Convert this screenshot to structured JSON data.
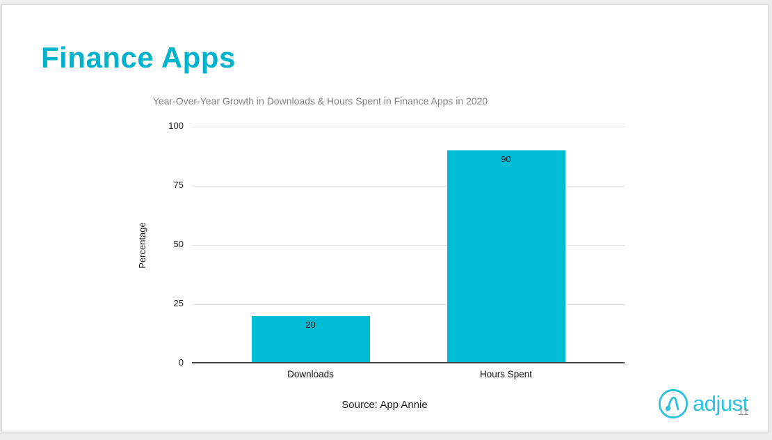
{
  "slide": {
    "title": "Finance Apps",
    "source": "Source: App Annie"
  },
  "chart_data": {
    "type": "bar",
    "title": "Year-Over-Year Growth in Downloads & Hours Spent in Finance Apps in 2020",
    "categories": [
      "Downloads",
      "Hours Spent"
    ],
    "values": [
      20,
      90
    ],
    "xlabel": "",
    "ylabel": "Percentage",
    "ylim": [
      0,
      100
    ],
    "yticks": [
      0,
      25,
      50,
      75,
      100
    ],
    "grid": true,
    "legend": "none",
    "value_label_position": "inside-top",
    "bar_color": "#00bdd6"
  },
  "footer": {
    "logo_text": "adjust",
    "page_number": "11"
  },
  "colors": {
    "accent": "#00b3cd",
    "chart_title_text": "#808080",
    "logo": "#2fc0dc",
    "gridline": "#e4e4e4",
    "axis_line": "#474747"
  },
  "icons": {
    "logo_mark": "adjust-circle-a-icon"
  }
}
